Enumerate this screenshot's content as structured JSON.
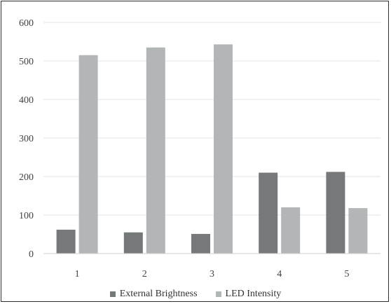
{
  "chart_data": {
    "type": "bar",
    "categories": [
      "1",
      "2",
      "3",
      "4",
      "5"
    ],
    "series": [
      {
        "name": "External Brightness",
        "values": [
          62,
          55,
          51,
          210,
          212
        ],
        "color": "#757979"
      },
      {
        "name": "LED Intensity",
        "values": [
          515,
          535,
          543,
          120,
          118
        ],
        "color": "#b3b6b6"
      }
    ],
    "yticks": [
      0,
      100,
      200,
      300,
      400,
      500,
      600
    ],
    "ylim": [
      0,
      600
    ],
    "grid": true,
    "legend_position": "bottom"
  }
}
